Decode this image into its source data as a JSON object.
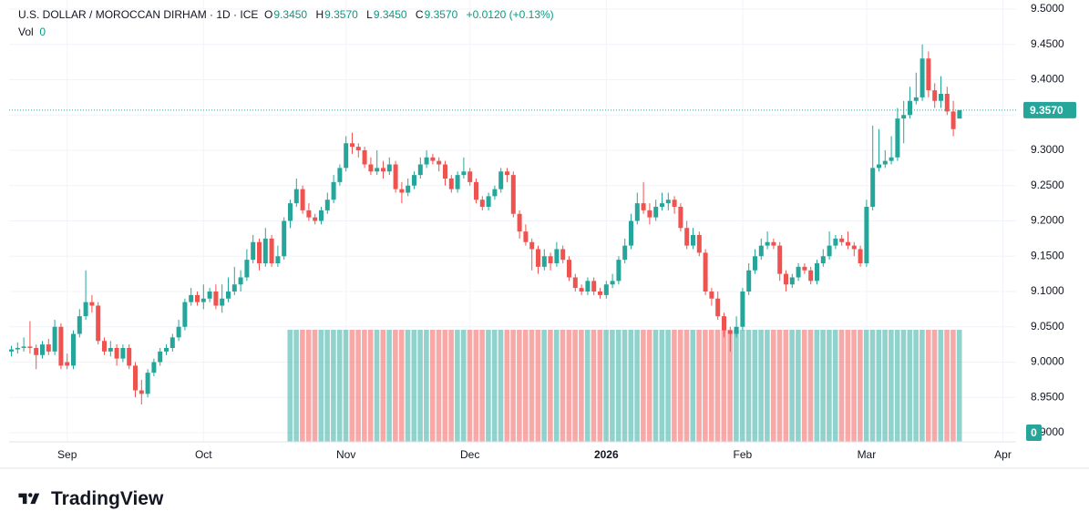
{
  "chart_data": {
    "type": "candlestick",
    "title": "U.S. DOLLAR / MOROCCAN DIRHAM · 1D · ICE",
    "legend": {
      "open_label": "O",
      "open": "9.3450",
      "high_label": "H",
      "high": "9.3570",
      "low_label": "L",
      "low": "9.3450",
      "close_label": "C",
      "close": "9.3570",
      "change": "+0.0120 (+0.13%)",
      "volume_label": "Vol"
    },
    "up_color": "#26a69a",
    "down_color": "#ef5350",
    "ylim": [
      8.9,
      9.5
    ],
    "yticks": [
      {
        "value": 8.9,
        "label": "8.9000"
      },
      {
        "value": 8.95,
        "label": "8.9500"
      },
      {
        "value": 9.0,
        "label": "9.0000"
      },
      {
        "value": 9.05,
        "label": "9.0500"
      },
      {
        "value": 9.1,
        "label": "9.1000"
      },
      {
        "value": 9.15,
        "label": "9.1500"
      },
      {
        "value": 9.2,
        "label": "9.2000"
      },
      {
        "value": 9.25,
        "label": "9.2500"
      },
      {
        "value": 9.3,
        "label": "9.3000"
      },
      {
        "value": 9.35,
        "label": "9.3500"
      },
      {
        "value": 9.4,
        "label": "9.4000"
      },
      {
        "value": 9.45,
        "label": "9.4500"
      },
      {
        "value": 9.5,
        "label": "9.5000"
      }
    ],
    "grid": true,
    "categories": [
      null,
      null,
      null,
      null,
      null,
      null,
      null,
      null,
      null,
      "Sep",
      null,
      null,
      null,
      null,
      null,
      null,
      null,
      null,
      null,
      null,
      null,
      null,
      null,
      null,
      null,
      null,
      null,
      null,
      null,
      null,
      null,
      "Oct",
      null,
      null,
      null,
      null,
      null,
      null,
      null,
      null,
      null,
      null,
      null,
      null,
      null,
      null,
      null,
      null,
      null,
      null,
      null,
      null,
      null,
      null,
      "Nov",
      null,
      null,
      null,
      null,
      null,
      null,
      null,
      null,
      null,
      null,
      null,
      null,
      null,
      null,
      null,
      null,
      null,
      null,
      null,
      "Dec",
      null,
      null,
      null,
      null,
      null,
      null,
      null,
      null,
      null,
      null,
      null,
      null,
      null,
      null,
      null,
      null,
      null,
      null,
      null,
      null,
      null,
      "2026",
      null,
      null,
      null,
      null,
      null,
      null,
      null,
      null,
      null,
      null,
      null,
      null,
      null,
      null,
      null,
      null,
      null,
      null,
      null,
      null,
      null,
      "Feb",
      null,
      null,
      null,
      null,
      null,
      null,
      null,
      null,
      null,
      null,
      null,
      null,
      null,
      null,
      null,
      null,
      null,
      null,
      null,
      "Mar",
      null,
      null,
      null,
      null,
      null,
      null,
      null,
      null,
      null,
      null,
      null,
      null,
      null,
      null,
      null,
      null,
      null,
      null,
      null,
      null,
      null,
      "Apr"
    ],
    "ohlc": [
      [
        9.015,
        9.023,
        9.008,
        9.018
      ],
      [
        9.018,
        9.028,
        9.012,
        9.02
      ],
      [
        9.02,
        9.035,
        9.015,
        9.022
      ],
      [
        9.022,
        9.058,
        9.012,
        9.02
      ],
      [
        9.02,
        9.025,
        8.99,
        9.01
      ],
      [
        9.01,
        9.03,
        9.005,
        9.025
      ],
      [
        9.025,
        9.033,
        9.01,
        9.015
      ],
      [
        9.015,
        9.06,
        9.01,
        9.05
      ],
      [
        9.05,
        9.055,
        8.99,
        8.995
      ],
      [
        9.0,
        9.012,
        8.99,
        8.995
      ],
      [
        8.995,
        9.045,
        8.99,
        9.04
      ],
      [
        9.04,
        9.075,
        9.035,
        9.065
      ],
      [
        9.065,
        9.13,
        9.06,
        9.085
      ],
      [
        9.085,
        9.095,
        9.07,
        9.08
      ],
      [
        9.08,
        9.085,
        9.025,
        9.03
      ],
      [
        9.03,
        9.035,
        9.01,
        9.015
      ],
      [
        9.015,
        9.03,
        9.008,
        9.02
      ],
      [
        9.02,
        9.025,
        8.995,
        9.005
      ],
      [
        9.005,
        9.025,
        9.0,
        9.02
      ],
      [
        9.02,
        9.025,
        8.99,
        8.995
      ],
      [
        8.995,
        9.0,
        8.95,
        8.96
      ],
      [
        8.96,
        8.975,
        8.94,
        8.955
      ],
      [
        8.955,
        8.99,
        8.95,
        8.985
      ],
      [
        8.985,
        9.005,
        8.98,
        9.0
      ],
      [
        9.0,
        9.02,
        8.995,
        9.015
      ],
      [
        9.015,
        9.025,
        9.01,
        9.02
      ],
      [
        9.02,
        9.04,
        9.015,
        9.035
      ],
      [
        9.035,
        9.06,
        9.03,
        9.05
      ],
      [
        9.05,
        9.09,
        9.045,
        9.085
      ],
      [
        9.085,
        9.105,
        9.08,
        9.095
      ],
      [
        9.095,
        9.1,
        9.08,
        9.085
      ],
      [
        9.085,
        9.11,
        9.075,
        9.09
      ],
      [
        9.09,
        9.105,
        9.085,
        9.1
      ],
      [
        9.1,
        9.11,
        9.075,
        9.08
      ],
      [
        9.08,
        9.11,
        9.07,
        9.09
      ],
      [
        9.09,
        9.12,
        9.085,
        9.1
      ],
      [
        9.1,
        9.135,
        9.095,
        9.11
      ],
      [
        9.11,
        9.13,
        9.1,
        9.12
      ],
      [
        9.12,
        9.16,
        9.115,
        9.145
      ],
      [
        9.145,
        9.18,
        9.14,
        9.17
      ],
      [
        9.17,
        9.175,
        9.13,
        9.14
      ],
      [
        9.14,
        9.19,
        9.135,
        9.175
      ],
      [
        9.175,
        9.18,
        9.135,
        9.14
      ],
      [
        9.14,
        9.165,
        9.135,
        9.15
      ],
      [
        9.15,
        9.205,
        9.145,
        9.2
      ],
      [
        9.2,
        9.23,
        9.19,
        9.225
      ],
      [
        9.225,
        9.26,
        9.22,
        9.245
      ],
      [
        9.245,
        9.25,
        9.21,
        9.215
      ],
      [
        9.215,
        9.225,
        9.2,
        9.205
      ],
      [
        9.205,
        9.21,
        9.195,
        9.2
      ],
      [
        9.2,
        9.22,
        9.195,
        9.215
      ],
      [
        9.215,
        9.24,
        9.21,
        9.23
      ],
      [
        9.23,
        9.265,
        9.225,
        9.255
      ],
      [
        9.255,
        9.28,
        9.25,
        9.275
      ],
      [
        9.275,
        9.32,
        9.27,
        9.31
      ],
      [
        9.31,
        9.325,
        9.295,
        9.305
      ],
      [
        9.305,
        9.31,
        9.29,
        9.3
      ],
      [
        9.3,
        9.305,
        9.275,
        9.28
      ],
      [
        9.28,
        9.29,
        9.265,
        9.27
      ],
      [
        9.27,
        9.3,
        9.265,
        9.275
      ],
      [
        9.275,
        9.285,
        9.26,
        9.27
      ],
      [
        9.27,
        9.29,
        9.265,
        9.28
      ],
      [
        9.28,
        9.285,
        9.24,
        9.245
      ],
      [
        9.245,
        9.255,
        9.225,
        9.24
      ],
      [
        9.24,
        9.26,
        9.235,
        9.25
      ],
      [
        9.25,
        9.27,
        9.245,
        9.265
      ],
      [
        9.265,
        9.29,
        9.26,
        9.28
      ],
      [
        9.28,
        9.3,
        9.275,
        9.29
      ],
      [
        9.29,
        9.295,
        9.28,
        9.285
      ],
      [
        9.285,
        9.29,
        9.27,
        9.28
      ],
      [
        9.28,
        9.285,
        9.25,
        9.26
      ],
      [
        9.26,
        9.265,
        9.24,
        9.245
      ],
      [
        9.245,
        9.27,
        9.24,
        9.265
      ],
      [
        9.265,
        9.29,
        9.26,
        9.27
      ],
      [
        9.27,
        9.275,
        9.25,
        9.255
      ],
      [
        9.255,
        9.26,
        9.225,
        9.23
      ],
      [
        9.23,
        9.235,
        9.215,
        9.22
      ],
      [
        9.22,
        9.24,
        9.215,
        9.235
      ],
      [
        9.235,
        9.25,
        9.23,
        9.245
      ],
      [
        9.245,
        9.275,
        9.24,
        9.27
      ],
      [
        9.27,
        9.275,
        9.255,
        9.265
      ],
      [
        9.265,
        9.27,
        9.205,
        9.21
      ],
      [
        9.21,
        9.215,
        9.175,
        9.185
      ],
      [
        9.185,
        9.195,
        9.165,
        9.17
      ],
      [
        9.17,
        9.175,
        9.13,
        9.16
      ],
      [
        9.16,
        9.165,
        9.125,
        9.135
      ],
      [
        9.135,
        9.16,
        9.13,
        9.15
      ],
      [
        9.15,
        9.155,
        9.13,
        9.14
      ],
      [
        9.14,
        9.17,
        9.135,
        9.16
      ],
      [
        9.16,
        9.165,
        9.14,
        9.145
      ],
      [
        9.145,
        9.15,
        9.115,
        9.12
      ],
      [
        9.12,
        9.125,
        9.1,
        9.105
      ],
      [
        9.105,
        9.11,
        9.095,
        9.1
      ],
      [
        9.1,
        9.12,
        9.095,
        9.115
      ],
      [
        9.115,
        9.12,
        9.095,
        9.1
      ],
      [
        9.1,
        9.105,
        9.09,
        9.095
      ],
      [
        9.095,
        9.115,
        9.09,
        9.11
      ],
      [
        9.11,
        9.125,
        9.105,
        9.115
      ],
      [
        9.115,
        9.15,
        9.11,
        9.145
      ],
      [
        9.145,
        9.175,
        9.14,
        9.165
      ],
      [
        9.165,
        9.21,
        9.16,
        9.2
      ],
      [
        9.2,
        9.24,
        9.195,
        9.225
      ],
      [
        9.225,
        9.255,
        9.21,
        9.215
      ],
      [
        9.215,
        9.225,
        9.195,
        9.205
      ],
      [
        9.205,
        9.23,
        9.2,
        9.22
      ],
      [
        9.22,
        9.24,
        9.215,
        9.225
      ],
      [
        9.225,
        9.24,
        9.215,
        9.23
      ],
      [
        9.23,
        9.235,
        9.21,
        9.22
      ],
      [
        9.22,
        9.225,
        9.185,
        9.19
      ],
      [
        9.19,
        9.2,
        9.16,
        9.165
      ],
      [
        9.165,
        9.19,
        9.16,
        9.18
      ],
      [
        9.18,
        9.185,
        9.15,
        9.155
      ],
      [
        9.155,
        9.16,
        9.095,
        9.1
      ],
      [
        9.1,
        9.105,
        9.08,
        9.09
      ],
      [
        9.09,
        9.1,
        9.06,
        9.065
      ],
      [
        9.065,
        9.07,
        9.035,
        9.045
      ],
      [
        9.045,
        9.05,
        9.015,
        9.04
      ],
      [
        9.04,
        9.065,
        9.035,
        9.05
      ],
      [
        9.05,
        9.105,
        9.045,
        9.1
      ],
      [
        9.1,
        9.14,
        9.095,
        9.13
      ],
      [
        9.13,
        9.16,
        9.125,
        9.15
      ],
      [
        9.15,
        9.175,
        9.145,
        9.165
      ],
      [
        9.165,
        9.185,
        9.16,
        9.17
      ],
      [
        9.17,
        9.175,
        9.16,
        9.165
      ],
      [
        9.165,
        9.17,
        9.115,
        9.125
      ],
      [
        9.125,
        9.13,
        9.1,
        9.11
      ],
      [
        9.11,
        9.125,
        9.105,
        9.12
      ],
      [
        9.12,
        9.14,
        9.115,
        9.135
      ],
      [
        9.135,
        9.14,
        9.125,
        9.13
      ],
      [
        9.13,
        9.135,
        9.11,
        9.115
      ],
      [
        9.115,
        9.145,
        9.11,
        9.14
      ],
      [
        9.14,
        9.16,
        9.135,
        9.15
      ],
      [
        9.15,
        9.185,
        9.145,
        9.165
      ],
      [
        9.165,
        9.18,
        9.16,
        9.175
      ],
      [
        9.175,
        9.18,
        9.165,
        9.17
      ],
      [
        9.17,
        9.185,
        9.16,
        9.165
      ],
      [
        9.165,
        9.17,
        9.15,
        9.16
      ],
      [
        9.16,
        9.165,
        9.135,
        9.14
      ],
      [
        9.14,
        9.23,
        9.135,
        9.22
      ],
      [
        9.22,
        9.335,
        9.215,
        9.275
      ],
      [
        9.275,
        9.33,
        9.27,
        9.28
      ],
      [
        9.28,
        9.3,
        9.275,
        9.285
      ],
      [
        9.285,
        9.32,
        9.28,
        9.29
      ],
      [
        9.29,
        9.36,
        9.285,
        9.345
      ],
      [
        9.345,
        9.37,
        9.31,
        9.35
      ],
      [
        9.35,
        9.39,
        9.345,
        9.37
      ],
      [
        9.37,
        9.41,
        9.365,
        9.375
      ],
      [
        9.375,
        9.45,
        9.37,
        9.43
      ],
      [
        9.43,
        9.44,
        9.375,
        9.385
      ],
      [
        9.385,
        9.395,
        9.36,
        9.37
      ],
      [
        9.37,
        9.405,
        9.36,
        9.38
      ],
      [
        9.38,
        9.39,
        9.35,
        9.355
      ],
      [
        9.355,
        9.37,
        9.32,
        9.33
      ],
      [
        9.345,
        9.357,
        9.345,
        9.357
      ],
      null,
      null,
      null,
      null,
      null,
      null,
      null
    ],
    "volume": [
      null,
      null,
      null,
      null,
      null,
      null,
      null,
      null,
      null,
      null,
      null,
      null,
      null,
      null,
      null,
      null,
      null,
      null,
      null,
      null,
      null,
      null,
      null,
      null,
      null,
      null,
      null,
      null,
      null,
      null,
      null,
      null,
      null,
      null,
      null,
      null,
      null,
      null,
      null,
      null,
      null,
      null,
      null,
      null,
      null,
      0,
      0,
      0,
      0,
      0,
      0,
      0,
      0,
      0,
      0,
      0,
      0,
      0,
      0,
      0,
      0,
      0,
      0,
      0,
      0,
      0,
      0,
      0,
      0,
      0,
      0,
      0,
      0,
      0,
      0,
      0,
      0,
      0,
      0,
      0,
      0,
      0,
      0,
      0,
      0,
      0,
      0,
      0,
      0,
      0,
      0,
      0,
      0,
      0,
      0,
      0,
      0,
      0,
      0,
      0,
      0,
      0,
      0,
      0,
      0,
      0,
      0,
      0,
      0,
      0,
      0,
      0,
      0,
      0,
      0,
      0,
      0,
      0,
      0,
      0,
      0,
      0,
      0,
      0,
      0,
      0,
      0,
      0,
      0,
      0,
      0,
      0,
      0,
      0,
      0,
      0,
      0,
      0,
      0,
      0,
      0,
      0,
      0,
      0,
      0,
      0,
      0,
      0,
      0,
      0,
      0,
      0,
      0,
      0,
      null,
      null,
      null,
      null,
      null,
      null,
      null
    ]
  },
  "brand": "TradingView"
}
